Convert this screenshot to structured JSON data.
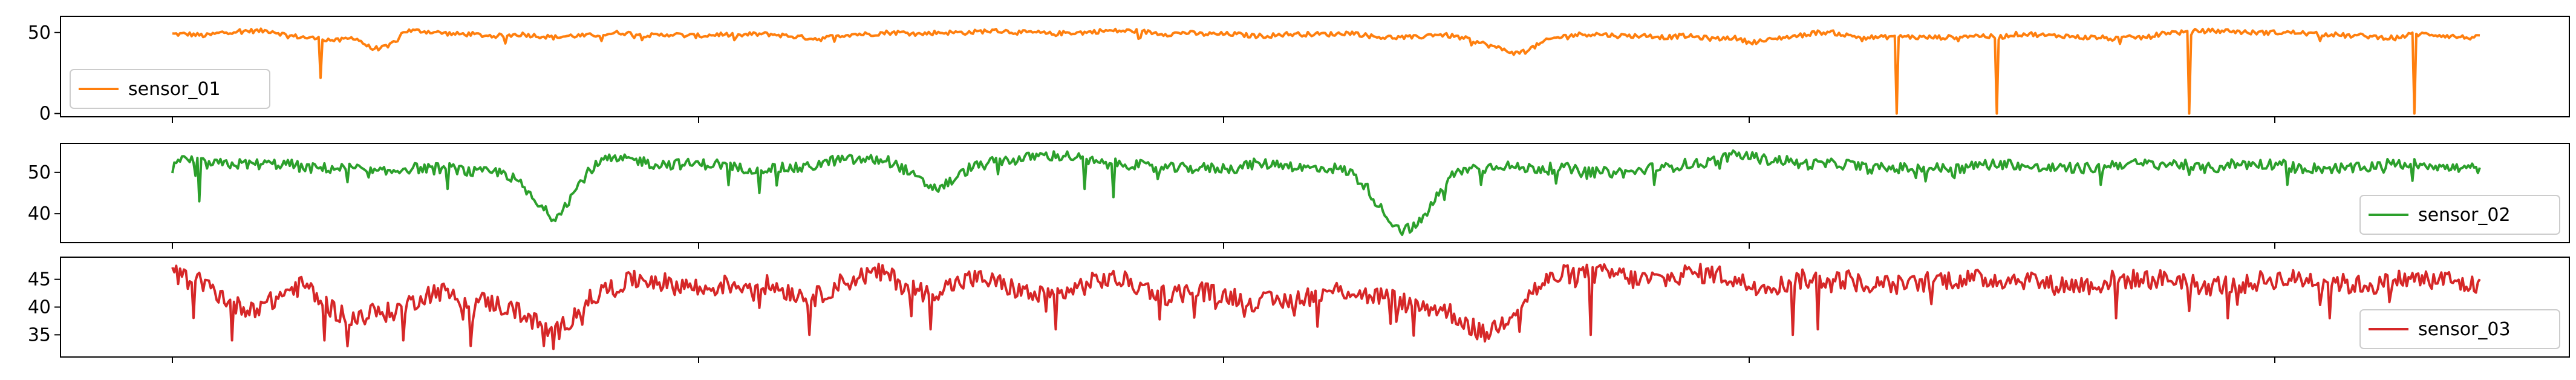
{
  "chart_data": [
    {
      "type": "line",
      "series": [
        {
          "name": "sensor_01",
          "color": "#ff7f0e"
        }
      ],
      "ylim": [
        -2,
        60
      ],
      "yticks": [
        0,
        50
      ],
      "xticks_count": 5,
      "legend_loc": "lower-left",
      "shape": {
        "base": [
          49,
          49,
          48,
          50,
          51,
          51,
          51,
          48,
          47,
          46,
          45,
          47,
          40,
          41,
          51,
          51,
          50,
          49,
          49,
          48,
          48,
          49,
          48,
          47,
          48,
          48,
          49,
          50,
          49,
          48,
          49,
          48,
          48,
          49,
          48,
          49,
          49,
          48,
          47,
          46,
          48,
          49,
          49,
          50,
          50,
          49,
          50,
          50,
          50,
          51,
          51,
          50,
          50,
          49,
          50,
          50,
          51,
          51,
          51,
          50,
          49,
          50,
          49,
          49,
          49,
          48,
          48,
          49,
          49,
          49,
          49,
          50,
          48,
          47,
          47,
          47,
          49,
          48,
          46,
          43,
          40,
          37,
          41,
          46,
          48,
          49,
          49,
          48,
          48,
          48,
          47,
          48,
          47,
          46,
          47,
          44,
          45,
          47,
          48,
          50,
          50,
          48,
          47,
          47,
          48,
          47,
          47,
          47,
          48,
          48,
          47,
          49,
          49,
          48,
          48,
          47,
          47,
          46,
          47,
          47,
          50,
          50,
          51,
          51,
          51,
          50,
          50,
          50,
          50,
          49,
          49,
          48,
          48,
          47,
          47,
          49,
          49,
          48,
          47,
          47
        ],
        "noise": 1.4,
        "spikes": [
          [
            0.064,
            22
          ],
          [
            0.747,
            0
          ],
          [
            0.791,
            0
          ],
          [
            0.874,
            0
          ],
          [
            0.972,
            0
          ]
        ]
      },
      "ticks": [
        "0",
        "50"
      ]
    },
    {
      "type": "line",
      "series": [
        {
          "name": "sensor_02",
          "color": "#2ca02c"
        }
      ],
      "ylim": [
        33,
        57
      ],
      "yticks": [
        40,
        50
      ],
      "xticks_count": 5,
      "legend_loc": "lower-right",
      "shape": {
        "base": [
          53,
          53,
          52,
          52,
          52,
          52,
          52,
          52,
          51,
          51,
          51,
          51,
          50,
          50,
          51,
          51,
          51,
          51,
          50,
          50,
          50,
          47,
          42,
          39,
          44,
          50,
          53,
          53,
          53,
          52,
          52,
          52,
          52,
          52,
          51,
          51,
          51,
          51,
          51,
          52,
          53,
          53,
          53,
          53,
          51,
          48,
          46,
          48,
          51,
          52,
          53,
          53,
          54,
          54,
          54,
          53,
          52,
          52,
          52,
          51,
          51,
          51,
          51,
          51,
          51,
          52,
          52,
          52,
          51,
          51,
          51,
          50,
          46,
          40,
          36,
          37,
          43,
          49,
          51,
          51,
          52,
          51,
          51,
          51,
          51,
          50,
          50,
          50,
          50,
          51,
          51,
          52,
          52,
          53,
          54,
          54,
          53,
          53,
          52,
          52,
          52,
          52,
          51,
          51,
          51,
          51,
          51,
          51,
          51,
          52,
          52,
          52,
          51,
          51,
          51,
          51,
          51,
          52,
          52,
          52,
          52,
          52,
          51,
          51,
          52,
          52,
          52,
          52,
          51,
          51,
          51,
          51,
          51,
          52,
          52,
          52,
          52,
          51,
          51,
          51
        ],
        "noise": 1.3,
        "spikes": [
          [
            0.012,
            43
          ],
          [
            0.119,
            46
          ],
          [
            0.254,
            45
          ],
          [
            0.395,
            46
          ],
          [
            0.408,
            44
          ],
          [
            0.567,
            47
          ],
          [
            0.642,
            47
          ],
          [
            0.836,
            47
          ],
          [
            0.917,
            47
          ]
        ]
      },
      "ticks": [
        "40",
        "50"
      ]
    },
    {
      "type": "line",
      "series": [
        {
          "name": "sensor_03",
          "color": "#d62728"
        }
      ],
      "ylim": [
        31,
        49
      ],
      "yticks": [
        35,
        40,
        45
      ],
      "xticks_count": 5,
      "legend_loc": "lower-right",
      "shape": {
        "base": [
          46,
          45,
          44,
          42,
          40,
          40,
          41,
          43,
          44,
          41,
          39,
          38,
          39,
          39,
          40,
          42,
          43,
          42,
          41,
          41,
          40,
          39,
          37,
          35,
          38,
          41,
          43,
          44,
          45,
          45,
          44,
          44,
          43,
          44,
          44,
          44,
          44,
          43,
          42,
          42,
          44,
          45,
          46,
          46,
          44,
          43,
          43,
          44,
          45,
          45,
          44,
          43,
          42,
          42,
          43,
          44,
          45,
          45,
          44,
          43,
          42,
          43,
          43,
          42,
          42,
          41,
          41,
          41,
          42,
          42,
          43,
          43,
          42,
          42,
          41,
          40,
          40,
          39,
          37,
          35,
          37,
          40,
          43,
          45,
          46,
          46,
          46,
          46,
          45,
          45,
          45,
          46,
          46,
          46,
          45,
          44,
          44,
          44,
          45,
          45,
          45,
          45,
          44,
          44,
          44,
          44,
          45,
          45,
          45,
          45,
          45,
          45,
          45,
          44,
          44,
          44,
          44,
          45,
          45,
          45,
          45,
          45,
          44,
          44,
          44,
          44,
          45,
          45,
          45,
          45,
          45,
          44,
          44,
          44,
          45,
          45,
          45,
          45,
          44,
          44
        ],
        "noise": 1.8,
        "spikes": [
          [
            0.026,
            34
          ],
          [
            0.066,
            34
          ],
          [
            0.1,
            34
          ],
          [
            0.129,
            33
          ],
          [
            0.161,
            33
          ],
          [
            0.276,
            35
          ],
          [
            0.329,
            36
          ],
          [
            0.383,
            36
          ],
          [
            0.528,
            37
          ],
          [
            0.563,
            35
          ],
          [
            0.615,
            35
          ],
          [
            0.702,
            35
          ],
          [
            0.713,
            36
          ],
          [
            0.842,
            38
          ],
          [
            0.891,
            38
          ],
          [
            0.935,
            38
          ]
        ]
      },
      "ticks": [
        "35",
        "40",
        "45"
      ]
    }
  ]
}
